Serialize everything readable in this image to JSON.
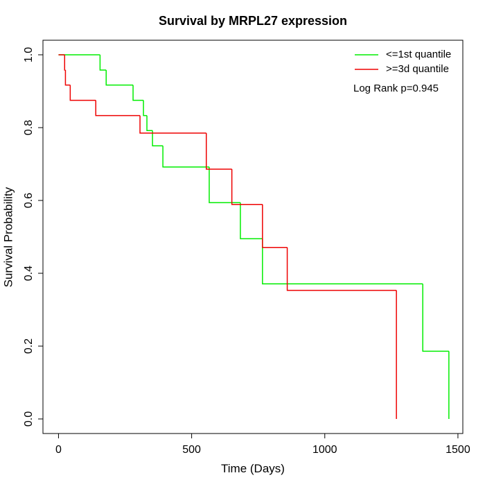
{
  "chart_data": {
    "type": "step",
    "title": "Survival by MRPL27 expression",
    "x_label": "Time (Days)",
    "y_label": "Survival Probability",
    "annotation": "Log Rank p=0.945",
    "legend_position": "top-right",
    "xlim": [
      -58.4,
      1518.4
    ],
    "ylim": [
      -0.04,
      1.04
    ],
    "xticks": [
      0,
      500,
      1000,
      1500
    ],
    "yticks": [
      {
        "value": 0,
        "label": "0.0"
      },
      0.2,
      0.4,
      0.6,
      0.8,
      {
        "value": 1,
        "label": "1.0"
      }
    ],
    "series": [
      {
        "name": "<=1st quantile",
        "color": "#00ee00",
        "x": [
          0,
          156,
          179,
          280,
          319,
          332,
          353,
          392,
          566,
          683,
          766,
          1368,
          1466
        ],
        "values": [
          1.0,
          0.958,
          0.917,
          0.875,
          0.833,
          0.792,
          0.75,
          0.692,
          0.594,
          0.495,
          0.371,
          0.186,
          0
        ]
      },
      {
        "name": ">=3d quantile",
        "color": "#ee0000",
        "x": [
          0,
          23,
          26,
          44,
          140,
          306,
          555,
          651,
          766,
          859,
          1269
        ],
        "values": [
          1.0,
          0.958,
          0.917,
          0.875,
          0.833,
          0.785,
          0.686,
          0.589,
          0.471,
          0.353,
          0
        ]
      }
    ]
  }
}
